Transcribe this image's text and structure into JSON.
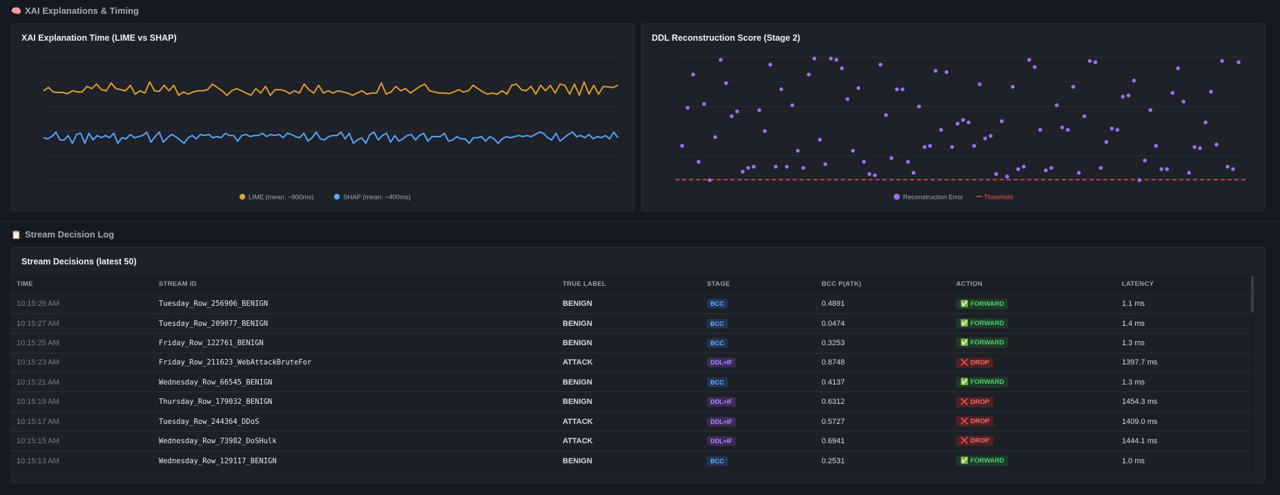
{
  "sections": {
    "xai": {
      "icon": "🧠",
      "title": "XAI Explanations & Timing"
    },
    "log": {
      "icon": "📋",
      "title": "Stream Decision Log"
    }
  },
  "colors": {
    "lime": "#e0a02a",
    "shap": "#58a6ff",
    "recon": "#9c6ff0",
    "threshold": "#f0504a",
    "grid": "#2a2e36"
  },
  "chart_data": [
    {
      "type": "line",
      "title": "XAI Explanation Time (LIME vs SHAP)",
      "xlabel": "",
      "ylabel": "",
      "ylim": [
        0,
        1100
      ],
      "grid": true,
      "legend_placement": "bottom",
      "series": [
        {
          "name": "LIME (mean: ~800ms)",
          "values": [
            800,
            830,
            790,
            785,
            785,
            775,
            800,
            790,
            790,
            840,
            820,
            860,
            810,
            800,
            870,
            820,
            810,
            800,
            850,
            770,
            800,
            780,
            880,
            800,
            795,
            850,
            800,
            850,
            760,
            790,
            770,
            790,
            800,
            800,
            810,
            860,
            830,
            800,
            760,
            800,
            820,
            800,
            780,
            760,
            820,
            780,
            840,
            760,
            810,
            810,
            800,
            775,
            800,
            780,
            860,
            810,
            780,
            850,
            780,
            800,
            780,
            800,
            790,
            780,
            760,
            780,
            800,
            770,
            780,
            780,
            870,
            770,
            790,
            840,
            800,
            820,
            780,
            810,
            840,
            860,
            800,
            790,
            780,
            780,
            775,
            790,
            810,
            790,
            800,
            850,
            820,
            790,
            770,
            780,
            770,
            800,
            770,
            850,
            860,
            810,
            800,
            840,
            770,
            850,
            800,
            850,
            780,
            860,
            850,
            770,
            860,
            760,
            880,
            770,
            850,
            770,
            840,
            835,
            830,
            850
          ]
        },
        {
          "name": "SHAP (mean: ~400ms)",
          "values": [
            380,
            370,
            390,
            430,
            360,
            360,
            400,
            330,
            410,
            420,
            330,
            420,
            360,
            400,
            380,
            400,
            380,
            420,
            330,
            380,
            370,
            410,
            380,
            390,
            400,
            430,
            340,
            390,
            430,
            340,
            380,
            410,
            390,
            360,
            330,
            380,
            400,
            370,
            410,
            400,
            410,
            380,
            390,
            380,
            420,
            400,
            400,
            350,
            400,
            410,
            390,
            400,
            400,
            420,
            390,
            410,
            400,
            410,
            380,
            420,
            410,
            390,
            380,
            420,
            350,
            380,
            430,
            370,
            360,
            390,
            400,
            400,
            430,
            370,
            420,
            330,
            360,
            380,
            330,
            410,
            430,
            360,
            400,
            420,
            340,
            400,
            350,
            370,
            400,
            410,
            360,
            400,
            420,
            350,
            390,
            390,
            390,
            420,
            350,
            360,
            390,
            370,
            370,
            330,
            380,
            380,
            390,
            350,
            390,
            370,
            330,
            370,
            390,
            380,
            390,
            400,
            390,
            400,
            390,
            410,
            430,
            420,
            380,
            360,
            420,
            350,
            380,
            410,
            430,
            390,
            400,
            380,
            410,
            370,
            390,
            380,
            400,
            370,
            430,
            380
          ]
        }
      ]
    },
    {
      "type": "scatter",
      "title": "DDL Reconstruction Score (Stage 2)",
      "xlabel": "",
      "ylabel": "",
      "ylim": [
        0,
        1
      ],
      "legend_placement": "bottom",
      "threshold": {
        "name": "Threshold",
        "value": 0.005
      },
      "series": [
        {
          "name": "Reconstruction Error",
          "values": [
            0.28,
            0.59,
            0.86,
            0.15,
            0.62,
            0.0,
            0.35,
            0.98,
            0.79,
            0.52,
            0.56,
            0.07,
            0.1,
            0.11,
            0.57,
            0.4,
            0.94,
            0.11,
            0.74,
            0.11,
            0.61,
            0.24,
            0.1,
            0.86,
            0.99,
            0.33,
            0.13,
            0.99,
            0.98,
            0.91,
            0.66,
            0.24,
            0.75,
            0.15,
            0.05,
            0.04,
            0.94,
            0.53,
            0.18,
            0.74,
            0.74,
            0.15,
            0.06,
            0.6,
            0.27,
            0.28,
            0.89,
            0.41,
            0.88,
            0.27,
            0.46,
            0.49,
            0.47,
            0.28,
            0.78,
            0.34,
            0.36,
            0.05,
            0.48,
            0.03,
            0.76,
            0.09,
            0.11,
            0.98,
            0.92,
            0.41,
            0.08,
            0.1,
            0.61,
            0.43,
            0.41,
            0.76,
            0.06,
            0.52,
            0.97,
            0.96,
            0.1,
            0.31,
            0.42,
            0.41,
            0.68,
            0.69,
            0.81,
            0.0,
            0.16,
            0.57,
            0.28,
            0.09,
            0.09,
            0.71,
            0.91,
            0.64,
            0.06,
            0.27,
            0.26,
            0.47,
            0.72,
            0.29,
            0.97,
            0.11,
            0.09,
            0.96
          ]
        }
      ]
    }
  ],
  "table": {
    "title": "Stream Decisions (latest 50)",
    "columns": [
      "TIME",
      "STREAM ID",
      "TRUE LABEL",
      "STAGE",
      "BCC P(ATK)",
      "ACTION",
      "LATENCY"
    ],
    "rows": [
      {
        "time": "10:15:29 AM",
        "stream_id": "Tuesday_Row_256906_BENIGN",
        "label": "BENIGN",
        "stage": "BCC",
        "p": "0.4891",
        "action": "✅ FORWARD",
        "latency": "1.1 ms"
      },
      {
        "time": "10:15:27 AM",
        "stream_id": "Tuesday_Row_209077_BENIGN",
        "label": "BENIGN",
        "stage": "BCC",
        "p": "0.0474",
        "action": "✅ FORWARD",
        "latency": "1.4 ms"
      },
      {
        "time": "10:15:25 AM",
        "stream_id": "Friday_Row_122761_BENIGN",
        "label": "BENIGN",
        "stage": "BCC",
        "p": "0.3253",
        "action": "✅ FORWARD",
        "latency": "1.3 ms"
      },
      {
        "time": "10:15:23 AM",
        "stream_id": "Friday_Row_211623_WebAttackBruteFor",
        "label": "ATTACK",
        "stage": "DDL+IF",
        "p": "0.8748",
        "action": "❌ DROP",
        "latency": "1397.7 ms"
      },
      {
        "time": "10:15:21 AM",
        "stream_id": "Wednesday_Row_66545_BENIGN",
        "label": "BENIGN",
        "stage": "BCC",
        "p": "0.4137",
        "action": "✅ FORWARD",
        "latency": "1.3 ms"
      },
      {
        "time": "10:15:19 AM",
        "stream_id": "Thursday_Row_179032_BENIGN",
        "label": "BENIGN",
        "stage": "DDL+IF",
        "p": "0.6312",
        "action": "❌ DROP",
        "latency": "1454.3 ms"
      },
      {
        "time": "10:15:17 AM",
        "stream_id": "Tuesday_Row_244364_DDoS",
        "label": "ATTACK",
        "stage": "DDL+IF",
        "p": "0.5727",
        "action": "❌ DROP",
        "latency": "1409.0 ms"
      },
      {
        "time": "10:15:15 AM",
        "stream_id": "Wednesday_Row_73982_DoSHulk",
        "label": "ATTACK",
        "stage": "DDL+IF",
        "p": "0.6941",
        "action": "❌ DROP",
        "latency": "1444.1 ms"
      },
      {
        "time": "10:15:13 AM",
        "stream_id": "Wednesday_Row_129117_BENIGN",
        "label": "BENIGN",
        "stage": "BCC",
        "p": "0.2531",
        "action": "✅ FORWARD",
        "latency": "1.0 ms"
      }
    ]
  }
}
